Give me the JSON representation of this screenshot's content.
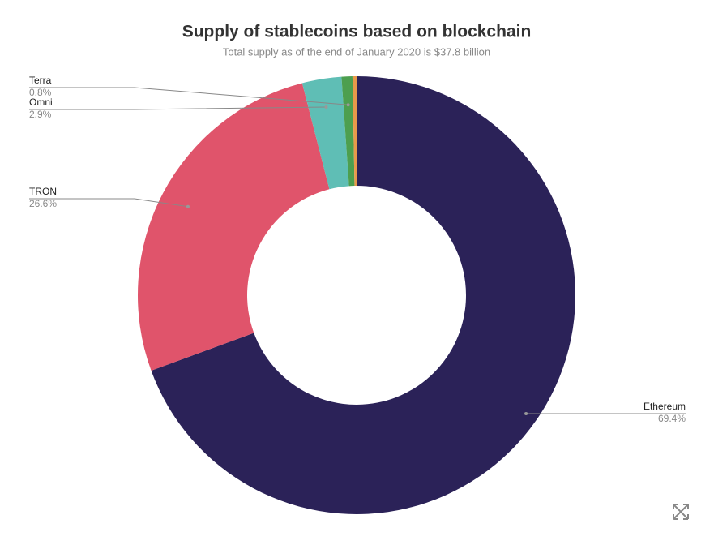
{
  "chart_data": {
    "type": "donut",
    "title": "Supply of stablecoins based on blockchain",
    "subtitle": "Total supply as of the end of January 2020 is $37.8 billion",
    "categories": [
      "Ethereum",
      "TRON",
      "Omni",
      "Terra",
      null
    ],
    "values": [
      69.4,
      26.6,
      2.9,
      0.8,
      0.3
    ],
    "value_labels": [
      "69.4%",
      "26.6%",
      "2.9%",
      "0.8%",
      null
    ],
    "colors": [
      "#2b2258",
      "#e0546b",
      "#5fbeb5",
      "#4d9f4f",
      "#e89a4a"
    ]
  }
}
